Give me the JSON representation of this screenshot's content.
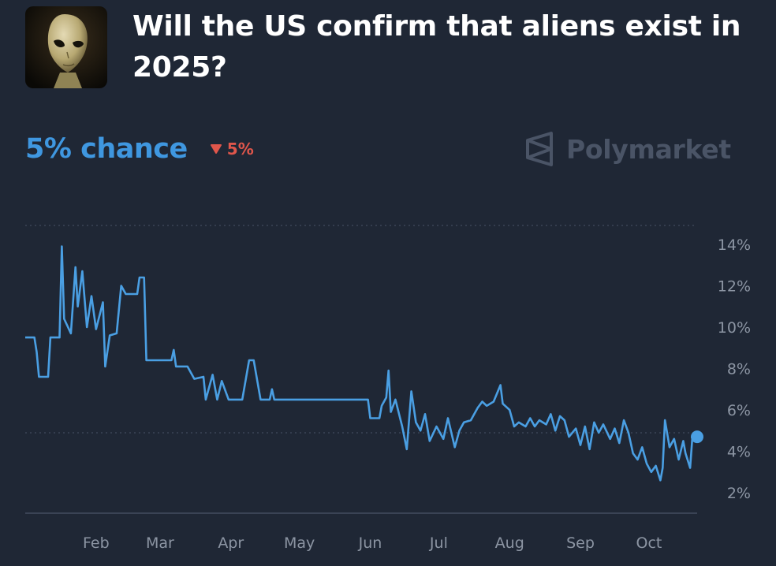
{
  "header": {
    "title": "Will the US confirm that aliens exist in 2025?",
    "thumbnail_icon": "alien-head-image"
  },
  "odds": {
    "chance_label": "5% chance",
    "change_label": "5%",
    "change_color": "#e0564b",
    "change_direction": "down"
  },
  "brand": {
    "name": "Polymarket",
    "icon": "polymarket-logo-icon"
  },
  "colors": {
    "background": "#1f2735",
    "line": "#4a9fe3",
    "accent_text": "#3f97e0"
  },
  "chart_data": {
    "type": "line",
    "title": "",
    "xlabel": "",
    "ylabel": "",
    "x_ticks": [
      "Feb",
      "Mar",
      "Apr",
      "May",
      "Jun",
      "Jul",
      "Aug",
      "Sep",
      "Oct"
    ],
    "y_ticks": [
      "2%",
      "4%",
      "6%",
      "8%",
      "10%",
      "12%",
      "14%"
    ],
    "ylim": [
      1,
      15
    ],
    "grid": "dotted lines at 5% and 14.9%",
    "series": [
      {
        "values": [
          [
            "2025-01-01",
            9.5
          ],
          [
            "2025-01-05",
            9.5
          ],
          [
            "2025-01-06",
            8.8
          ],
          [
            "2025-01-07",
            7.6
          ],
          [
            "2025-01-11",
            7.6
          ],
          [
            "2025-01-12",
            9.5
          ],
          [
            "2025-01-16",
            9.5
          ],
          [
            "2025-01-17",
            13.9
          ],
          [
            "2025-01-18",
            10.4
          ],
          [
            "2025-01-21",
            9.7
          ],
          [
            "2025-01-23",
            12.9
          ],
          [
            "2025-01-24",
            11.0
          ],
          [
            "2025-01-26",
            12.7
          ],
          [
            "2025-01-28",
            10.0
          ],
          [
            "2025-01-30",
            11.5
          ],
          [
            "2025-02-01",
            9.9
          ],
          [
            "2025-02-04",
            11.2
          ],
          [
            "2025-02-05",
            8.1
          ],
          [
            "2025-02-07",
            9.6
          ],
          [
            "2025-02-10",
            9.7
          ],
          [
            "2025-02-12",
            12.0
          ],
          [
            "2025-02-14",
            11.6
          ],
          [
            "2025-02-19",
            11.6
          ],
          [
            "2025-02-20",
            12.4
          ],
          [
            "2025-02-22",
            12.4
          ],
          [
            "2025-02-23",
            8.4
          ],
          [
            "2025-03-06",
            8.4
          ],
          [
            "2025-03-07",
            8.9
          ],
          [
            "2025-03-08",
            8.1
          ],
          [
            "2025-03-13",
            8.1
          ],
          [
            "2025-03-16",
            7.5
          ],
          [
            "2025-03-20",
            7.6
          ],
          [
            "2025-03-21",
            6.5
          ],
          [
            "2025-03-24",
            7.7
          ],
          [
            "2025-03-26",
            6.5
          ],
          [
            "2025-03-28",
            7.4
          ],
          [
            "2025-03-31",
            6.5
          ],
          [
            "2025-04-06",
            6.5
          ],
          [
            "2025-04-09",
            8.4
          ],
          [
            "2025-04-11",
            8.4
          ],
          [
            "2025-04-14",
            6.5
          ],
          [
            "2025-04-18",
            6.5
          ],
          [
            "2025-04-19",
            7.0
          ],
          [
            "2025-04-20",
            6.5
          ],
          [
            "2025-05-31",
            6.5
          ],
          [
            "2025-06-01",
            5.6
          ],
          [
            "2025-06-05",
            5.6
          ],
          [
            "2025-06-06",
            6.2
          ],
          [
            "2025-06-08",
            6.6
          ],
          [
            "2025-06-09",
            7.9
          ],
          [
            "2025-06-10",
            5.9
          ],
          [
            "2025-06-12",
            6.5
          ],
          [
            "2025-06-15",
            5.2
          ],
          [
            "2025-06-17",
            4.1
          ],
          [
            "2025-06-19",
            6.9
          ],
          [
            "2025-06-21",
            5.4
          ],
          [
            "2025-06-23",
            5.0
          ],
          [
            "2025-06-25",
            5.8
          ],
          [
            "2025-06-27",
            4.5
          ],
          [
            "2025-06-30",
            5.2
          ],
          [
            "2025-07-03",
            4.6
          ],
          [
            "2025-07-05",
            5.6
          ],
          [
            "2025-07-08",
            4.2
          ],
          [
            "2025-07-10",
            5.0
          ],
          [
            "2025-07-12",
            5.4
          ],
          [
            "2025-07-15",
            5.5
          ],
          [
            "2025-07-18",
            6.1
          ],
          [
            "2025-07-20",
            6.4
          ],
          [
            "2025-07-22",
            6.2
          ],
          [
            "2025-07-25",
            6.4
          ],
          [
            "2025-07-28",
            7.2
          ],
          [
            "2025-07-29",
            6.3
          ],
          [
            "2025-08-01",
            6.0
          ],
          [
            "2025-08-03",
            5.2
          ],
          [
            "2025-08-05",
            5.4
          ],
          [
            "2025-08-08",
            5.2
          ],
          [
            "2025-08-10",
            5.6
          ],
          [
            "2025-08-12",
            5.2
          ],
          [
            "2025-08-14",
            5.5
          ],
          [
            "2025-08-17",
            5.3
          ],
          [
            "2025-08-19",
            5.8
          ],
          [
            "2025-08-21",
            5.0
          ],
          [
            "2025-08-23",
            5.7
          ],
          [
            "2025-08-25",
            5.5
          ],
          [
            "2025-08-27",
            4.7
          ],
          [
            "2025-08-30",
            5.1
          ],
          [
            "2025-09-01",
            4.3
          ],
          [
            "2025-09-03",
            5.2
          ],
          [
            "2025-09-05",
            4.1
          ],
          [
            "2025-09-07",
            5.4
          ],
          [
            "2025-09-09",
            4.9
          ],
          [
            "2025-09-11",
            5.3
          ],
          [
            "2025-09-14",
            4.6
          ],
          [
            "2025-09-16",
            5.1
          ],
          [
            "2025-09-18",
            4.4
          ],
          [
            "2025-09-20",
            5.5
          ],
          [
            "2025-09-22",
            4.9
          ],
          [
            "2025-09-24",
            3.9
          ],
          [
            "2025-09-26",
            3.6
          ],
          [
            "2025-09-28",
            4.2
          ],
          [
            "2025-09-30",
            3.4
          ],
          [
            "2025-10-02",
            3.0
          ],
          [
            "2025-10-04",
            3.3
          ],
          [
            "2025-10-06",
            2.6
          ],
          [
            "2025-10-07",
            3.2
          ],
          [
            "2025-10-08",
            5.5
          ],
          [
            "2025-10-10",
            4.2
          ],
          [
            "2025-10-12",
            4.6
          ],
          [
            "2025-10-14",
            3.6
          ],
          [
            "2025-10-16",
            4.5
          ],
          [
            "2025-10-17",
            3.9
          ],
          [
            "2025-10-19",
            3.2
          ],
          [
            "2025-10-20",
            4.7
          ]
        ]
      }
    ]
  }
}
